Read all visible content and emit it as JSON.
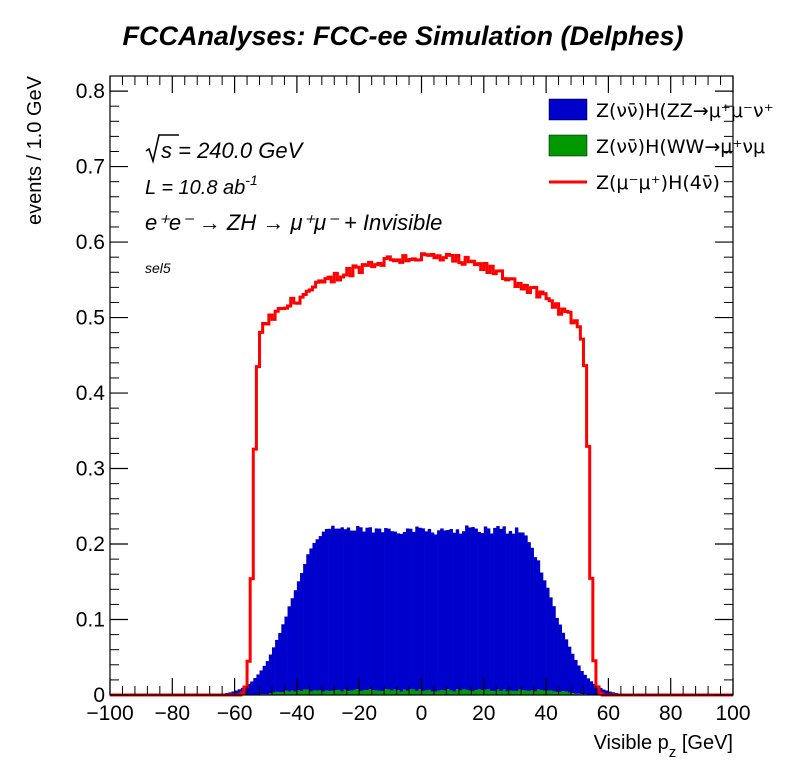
{
  "chart_data": {
    "type": "histogram",
    "title": "FCCAnalyses: FCC-ee Simulation (Delphes)",
    "xlabel": "Visible p_z [GeV]",
    "xlabel_main": "Visible p",
    "xlabel_sub": "z",
    "xlabel_unit": " [GeV]",
    "ylabel": "events / 1.0 GeV",
    "xlim": [
      -100,
      100
    ],
    "ylim": [
      0,
      0.82
    ],
    "x_ticks": [
      -100,
      -80,
      -60,
      -40,
      -20,
      0,
      20,
      40,
      60,
      80,
      100
    ],
    "x_tick_labels": [
      "−100",
      "−80",
      "−60",
      "−40",
      "−20",
      "0",
      "20",
      "40",
      "60",
      "80",
      "100"
    ],
    "y_ticks": [
      0,
      0.1,
      0.2,
      0.3,
      0.4,
      0.5,
      0.6,
      0.7,
      0.8
    ],
    "y_tick_labels": [
      "0",
      "0.1",
      "0.2",
      "0.3",
      "0.4",
      "0.5",
      "0.6",
      "0.7",
      "0.8"
    ],
    "grid": false,
    "legend_position": "top-right",
    "annotations": {
      "sqrt_s": "s = 240.0 GeV",
      "lumi": "L = 10.8 ab",
      "lumi_exp": "-1",
      "process": "e⁺e⁻ → ZH → μ⁺μ⁻ + Invisible",
      "selection": "sel5"
    },
    "series": [
      {
        "name": "Z(νν̄)H(ZZ→μ⁺μ⁻ν⁺",
        "style": "filled",
        "color": "#0000cc",
        "shape": {
          "plateau": 0.213,
          "core_half_width": 30,
          "sigma": 11
        },
        "points": [
          [
            -70,
            0.0
          ],
          [
            -60,
            0.024
          ],
          [
            -50,
            0.072
          ],
          [
            -40,
            0.167
          ],
          [
            -30,
            0.211
          ],
          [
            -20,
            0.215
          ],
          [
            -10,
            0.215
          ],
          [
            0,
            0.217
          ],
          [
            10,
            0.22
          ],
          [
            20,
            0.215
          ],
          [
            30,
            0.21
          ],
          [
            40,
            0.17
          ],
          [
            50,
            0.075
          ],
          [
            60,
            0.023
          ],
          [
            70,
            0.0
          ]
        ]
      },
      {
        "name": "Z(νν̄)H(WW→μ⁺νμ",
        "style": "filled",
        "color": "#009900",
        "shape": {
          "plateau": 0.006,
          "core_half_width": 40,
          "sigma": 6
        },
        "points": [
          [
            -60,
            0.0
          ],
          [
            -50,
            0.004
          ],
          [
            -40,
            0.006
          ],
          [
            0,
            0.007
          ],
          [
            40,
            0.006
          ],
          [
            50,
            0.004
          ],
          [
            60,
            0.0
          ]
        ]
      },
      {
        "name": "Z(μ⁻μ⁺)H(4ν̄)",
        "style": "line",
        "color": "#ff0000",
        "shape": {
          "center_value": 0.58,
          "curvature": 3.5e-05,
          "edge": 54,
          "edge_sigma": 1.6
        },
        "points": [
          [
            -60,
            0.0
          ],
          [
            -56,
            0.0
          ],
          [
            -54,
            0.29
          ],
          [
            -52,
            0.4
          ],
          [
            -50,
            0.48
          ],
          [
            -45,
            0.52
          ],
          [
            -40,
            0.535
          ],
          [
            -30,
            0.553
          ],
          [
            -20,
            0.567
          ],
          [
            -10,
            0.577
          ],
          [
            0,
            0.58
          ],
          [
            10,
            0.577
          ],
          [
            20,
            0.567
          ],
          [
            30,
            0.553
          ],
          [
            40,
            0.53
          ],
          [
            45,
            0.505
          ],
          [
            50,
            0.44
          ],
          [
            52,
            0.34
          ],
          [
            54,
            0.21
          ],
          [
            56,
            0.0
          ],
          [
            60,
            0.0
          ]
        ]
      }
    ]
  }
}
